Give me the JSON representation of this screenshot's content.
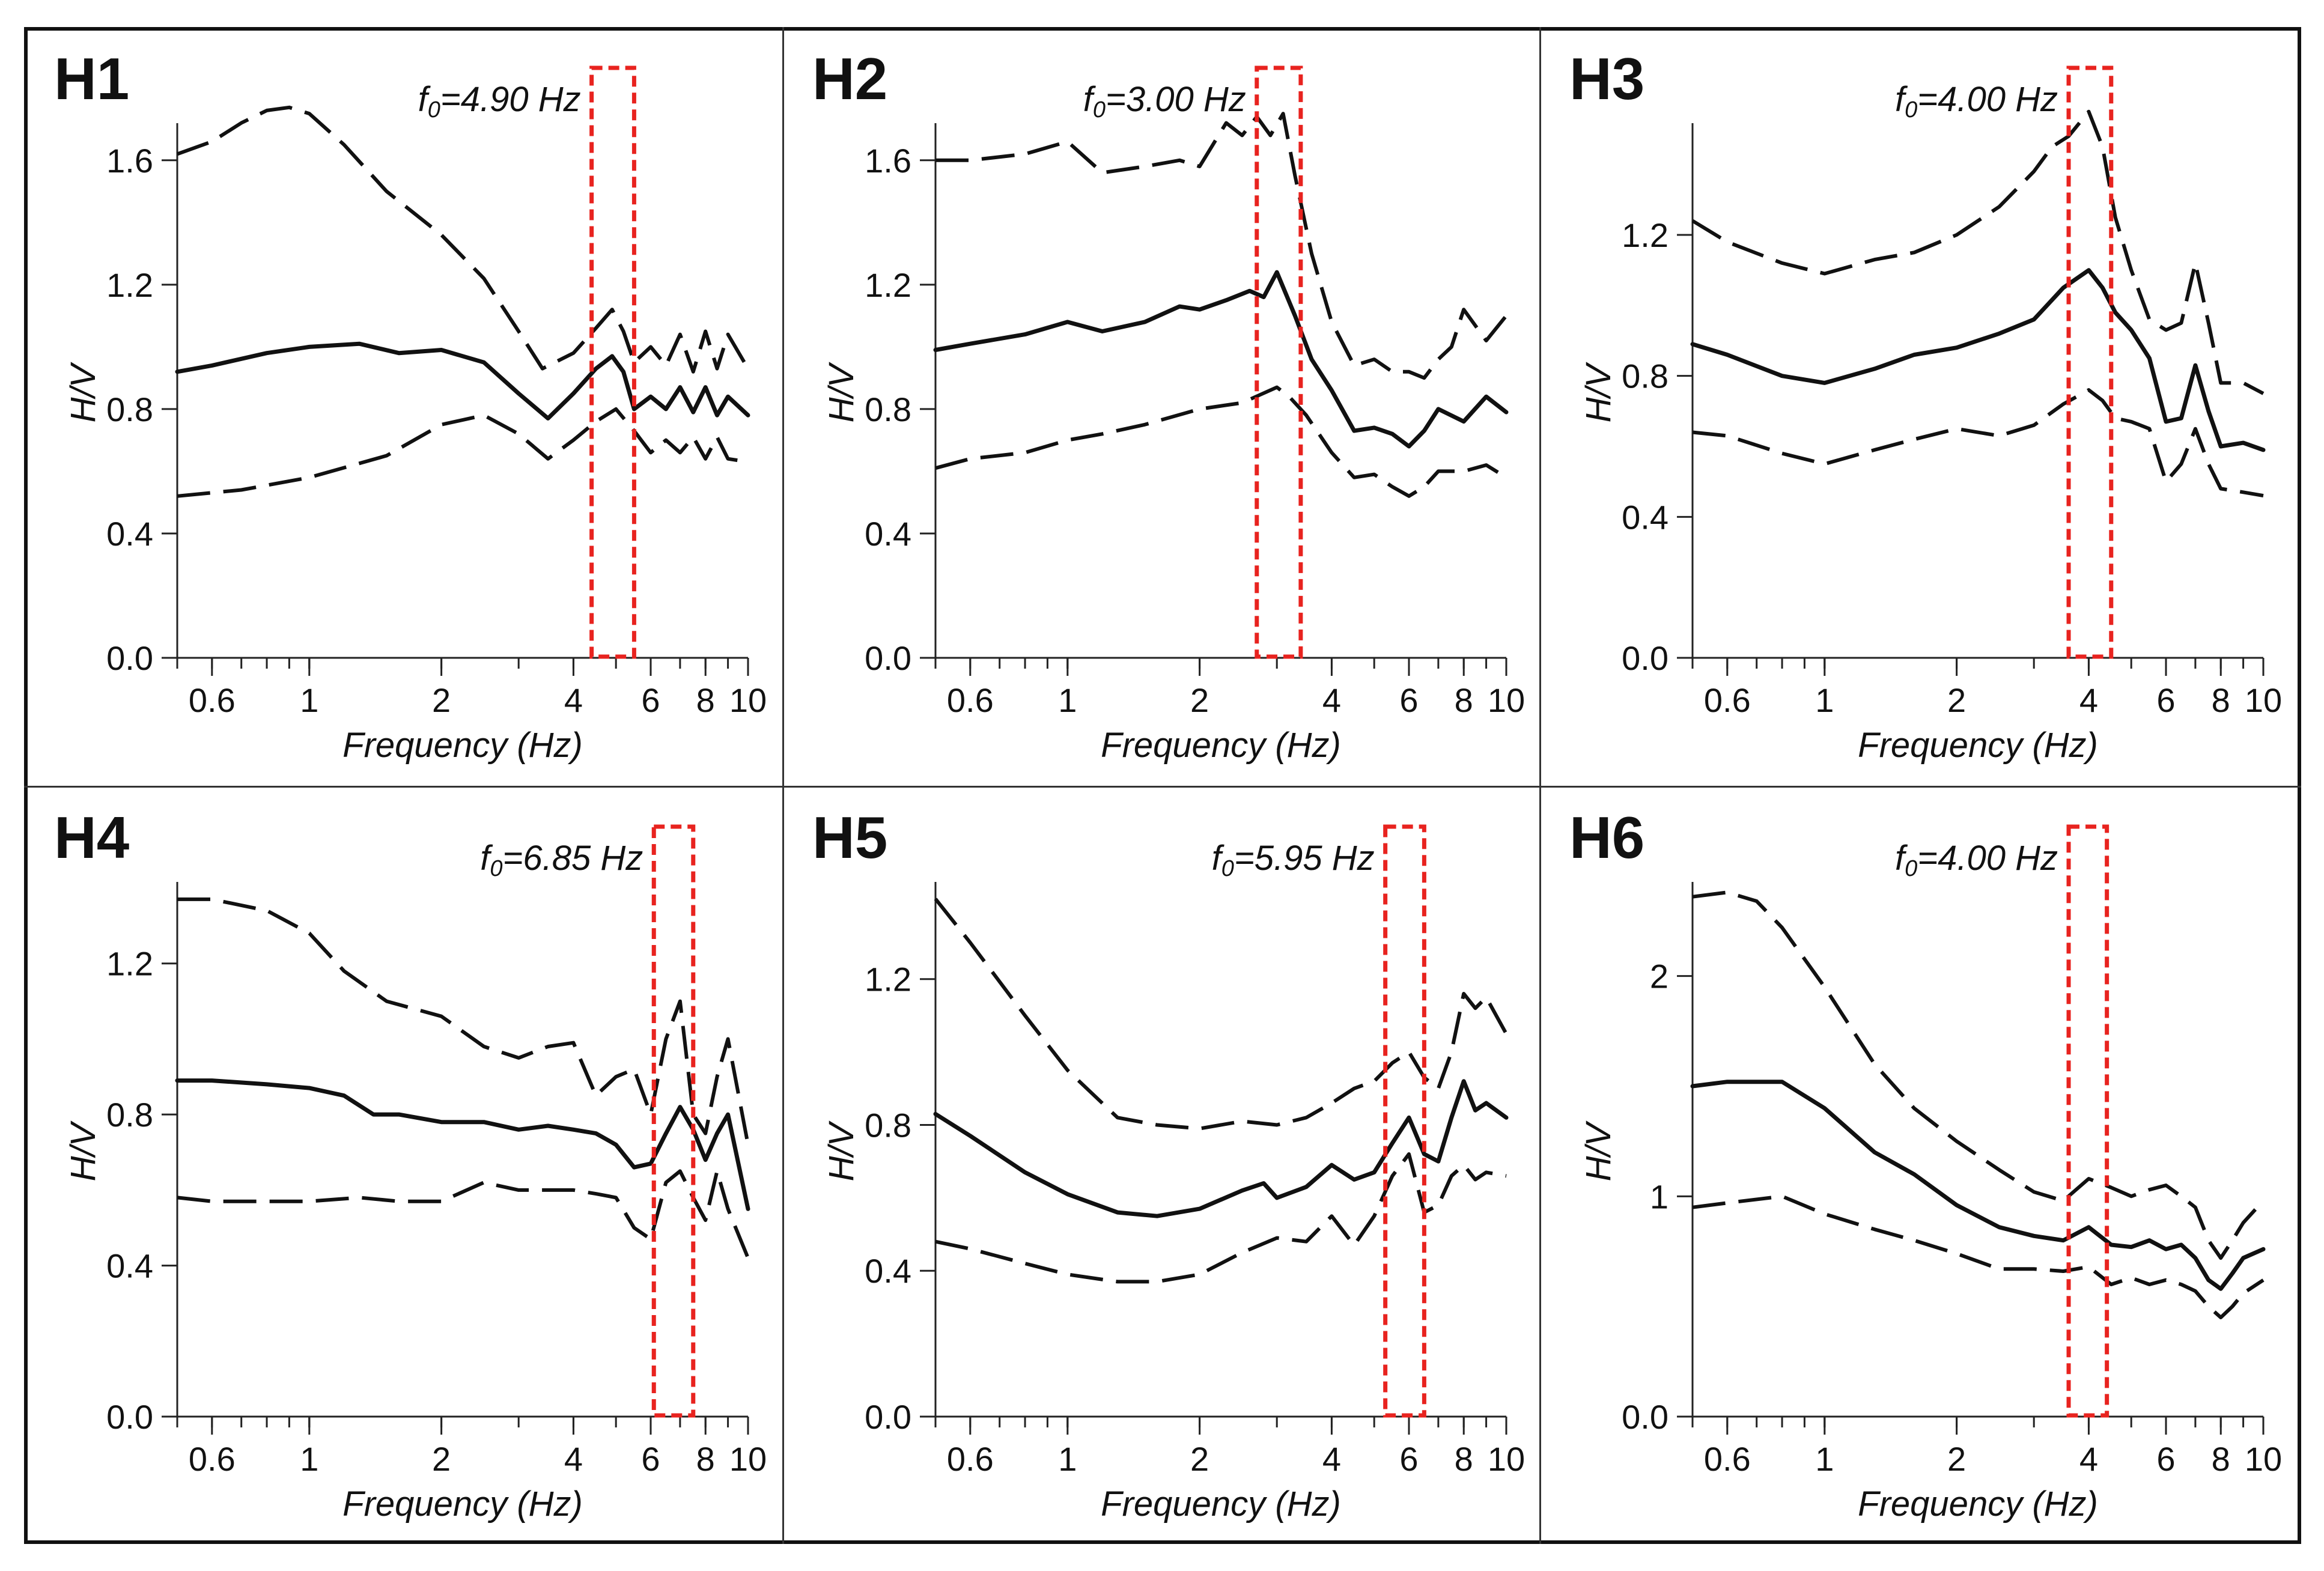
{
  "chart_data": [
    {
      "type": "line",
      "panel_label": "H1",
      "f0_label": "f0=4.90 Hz",
      "f0": 4.9,
      "x_ticks": [
        "0.6",
        "1",
        "2",
        "4",
        "6",
        "8",
        "10"
      ],
      "y_ticks": [
        "0.0",
        "0.4",
        "0.8",
        "1.2",
        "1.6"
      ],
      "xlabel": "Frequency (Hz)",
      "ylabel": "H/V",
      "xscale": "log",
      "xlim": [
        0.5,
        10
      ],
      "ylim": [
        0,
        1.7
      ],
      "peak_band": [
        4.4,
        5.5
      ],
      "series": [
        {
          "style": "solid",
          "x": [
            0.5,
            0.6,
            0.8,
            1,
            1.3,
            1.6,
            2,
            2.5,
            3,
            3.5,
            4,
            4.5,
            4.9,
            5.2,
            5.5,
            6,
            6.5,
            7,
            7.5,
            8,
            8.5,
            9,
            10
          ],
          "y": [
            0.92,
            0.94,
            0.98,
            1.0,
            1.01,
            0.98,
            0.99,
            0.95,
            0.85,
            0.77,
            0.85,
            0.93,
            0.97,
            0.92,
            0.8,
            0.84,
            0.8,
            0.87,
            0.79,
            0.87,
            0.78,
            0.84,
            0.78
          ]
        },
        {
          "style": "dashed",
          "x": [
            0.5,
            0.6,
            0.7,
            0.8,
            0.9,
            1,
            1.2,
            1.5,
            2,
            2.5,
            3,
            3.4,
            4,
            4.5,
            4.9,
            5.2,
            5.5,
            6,
            6.5,
            7,
            7.5,
            8,
            8.5,
            9,
            10
          ],
          "y": [
            1.62,
            1.66,
            1.72,
            1.76,
            1.77,
            1.75,
            1.65,
            1.5,
            1.36,
            1.22,
            1.05,
            0.93,
            0.98,
            1.06,
            1.12,
            1.05,
            0.95,
            1.0,
            0.94,
            1.04,
            0.92,
            1.05,
            0.93,
            1.04,
            0.93
          ]
        },
        {
          "style": "dashed",
          "x": [
            0.5,
            0.7,
            1,
            1.5,
            2,
            2.5,
            3,
            3.5,
            4,
            4.5,
            5,
            5.5,
            6,
            6.5,
            7,
            7.5,
            8,
            8.5,
            9,
            10
          ],
          "y": [
            0.52,
            0.54,
            0.58,
            0.65,
            0.75,
            0.78,
            0.72,
            0.64,
            0.7,
            0.76,
            0.8,
            0.73,
            0.66,
            0.7,
            0.66,
            0.71,
            0.64,
            0.71,
            0.64,
            0.63
          ]
        }
      ]
    },
    {
      "type": "line",
      "panel_label": "H2",
      "f0_label": "f0=3.00 Hz",
      "f0": 3.0,
      "x_ticks": [
        "0.6",
        "1",
        "2",
        "4",
        "6",
        "8",
        "10"
      ],
      "y_ticks": [
        "0.0",
        "0.4",
        "0.8",
        "1.2",
        "1.6"
      ],
      "xlabel": "Frequency (Hz)",
      "ylabel": "H/V",
      "xscale": "log",
      "xlim": [
        0.5,
        10
      ],
      "ylim": [
        0,
        1.7
      ],
      "peak_band": [
        2.7,
        3.4
      ],
      "series": [
        {
          "style": "solid",
          "x": [
            0.5,
            0.6,
            0.8,
            1,
            1.2,
            1.5,
            1.8,
            2,
            2.3,
            2.6,
            2.8,
            3,
            3.3,
            3.6,
            4,
            4.5,
            5,
            5.5,
            6,
            6.5,
            7,
            8,
            9,
            10
          ],
          "y": [
            0.99,
            1.01,
            1.04,
            1.08,
            1.05,
            1.08,
            1.13,
            1.12,
            1.15,
            1.18,
            1.16,
            1.24,
            1.1,
            0.96,
            0.86,
            0.73,
            0.74,
            0.72,
            0.68,
            0.73,
            0.8,
            0.76,
            0.84,
            0.79
          ]
        },
        {
          "style": "dashed",
          "x": [
            0.5,
            0.6,
            0.8,
            1,
            1.2,
            1.5,
            1.8,
            2,
            2.3,
            2.5,
            2.7,
            2.9,
            3.1,
            3.3,
            3.6,
            4,
            4.5,
            5,
            5.5,
            6,
            6.5,
            7,
            7.5,
            8,
            9,
            10
          ],
          "y": [
            1.6,
            1.6,
            1.62,
            1.66,
            1.56,
            1.58,
            1.6,
            1.58,
            1.72,
            1.68,
            1.74,
            1.68,
            1.75,
            1.55,
            1.3,
            1.08,
            0.94,
            0.96,
            0.92,
            0.92,
            0.9,
            0.96,
            1.0,
            1.12,
            1.02,
            1.1
          ]
        },
        {
          "style": "dashed",
          "x": [
            0.5,
            0.6,
            0.8,
            1,
            1.2,
            1.5,
            2,
            2.5,
            3,
            3.2,
            3.5,
            4,
            4.5,
            5,
            5.5,
            6,
            6.5,
            7,
            8,
            9,
            10
          ],
          "y": [
            0.61,
            0.64,
            0.66,
            0.7,
            0.72,
            0.75,
            0.8,
            0.82,
            0.87,
            0.84,
            0.78,
            0.66,
            0.58,
            0.59,
            0.55,
            0.52,
            0.55,
            0.6,
            0.6,
            0.62,
            0.58
          ]
        }
      ]
    },
    {
      "type": "line",
      "panel_label": "H3",
      "f0_label": "f0=4.00 Hz",
      "f0": 4.0,
      "x_ticks": [
        "0.6",
        "1",
        "2",
        "4",
        "6",
        "8",
        "10"
      ],
      "y_ticks": [
        "0.0",
        "0.4",
        "0.8",
        "1.2"
      ],
      "xlabel": "Frequency (Hz)",
      "ylabel": "H/V",
      "xscale": "log",
      "xlim": [
        0.5,
        10
      ],
      "ylim": [
        0,
        1.5
      ],
      "peak_band": [
        3.6,
        4.5
      ],
      "series": [
        {
          "style": "solid",
          "x": [
            0.5,
            0.6,
            0.8,
            1,
            1.3,
            1.6,
            2,
            2.5,
            3,
            3.5,
            4,
            4.3,
            4.6,
            5,
            5.5,
            6,
            6.5,
            7,
            7.5,
            8,
            9,
            10
          ],
          "y": [
            0.89,
            0.86,
            0.8,
            0.78,
            0.82,
            0.86,
            0.88,
            0.92,
            0.96,
            1.05,
            1.1,
            1.05,
            0.98,
            0.93,
            0.85,
            0.67,
            0.68,
            0.83,
            0.7,
            0.6,
            0.61,
            0.59
          ]
        },
        {
          "style": "dashed",
          "x": [
            0.5,
            0.6,
            0.8,
            1,
            1.3,
            1.6,
            2,
            2.5,
            3,
            3.3,
            3.6,
            4,
            4.3,
            4.6,
            5,
            5.5,
            6,
            6.5,
            7,
            7.5,
            8,
            9,
            10
          ],
          "y": [
            1.24,
            1.18,
            1.12,
            1.09,
            1.13,
            1.15,
            1.2,
            1.28,
            1.38,
            1.45,
            1.48,
            1.55,
            1.45,
            1.25,
            1.1,
            0.96,
            0.93,
            0.95,
            1.12,
            0.95,
            0.78,
            0.78,
            0.75
          ]
        },
        {
          "style": "dashed",
          "x": [
            0.5,
            0.6,
            0.8,
            1,
            1.3,
            1.6,
            2,
            2.5,
            3,
            3.5,
            4,
            4.3,
            4.6,
            5,
            5.5,
            6,
            6.5,
            7,
            7.5,
            8,
            9,
            10
          ],
          "y": [
            0.64,
            0.63,
            0.58,
            0.55,
            0.59,
            0.62,
            0.65,
            0.63,
            0.66,
            0.72,
            0.76,
            0.73,
            0.68,
            0.67,
            0.65,
            0.5,
            0.55,
            0.65,
            0.55,
            0.48,
            0.47,
            0.46
          ]
        }
      ]
    },
    {
      "type": "line",
      "panel_label": "H4",
      "f0_label": "f0=6.85 Hz",
      "f0": 6.85,
      "x_ticks": [
        "0.6",
        "1",
        "2",
        "4",
        "6",
        "8",
        "10"
      ],
      "y_ticks": [
        "0.0",
        "0.4",
        "0.8",
        "1.2"
      ],
      "xlabel": "Frequency (Hz)",
      "ylabel": "H/V",
      "xscale": "log",
      "xlim": [
        0.5,
        10
      ],
      "ylim": [
        0,
        1.4
      ],
      "peak_band": [
        6.1,
        7.5
      ],
      "series": [
        {
          "style": "solid",
          "x": [
            0.5,
            0.6,
            0.8,
            1,
            1.2,
            1.4,
            1.6,
            2,
            2.5,
            3,
            3.5,
            4,
            4.5,
            5,
            5.5,
            6,
            6.5,
            7,
            7.5,
            8,
            8.5,
            9,
            10
          ],
          "y": [
            0.89,
            0.89,
            0.88,
            0.87,
            0.85,
            0.8,
            0.8,
            0.78,
            0.78,
            0.76,
            0.77,
            0.76,
            0.75,
            0.72,
            0.66,
            0.67,
            0.75,
            0.82,
            0.76,
            0.68,
            0.75,
            0.8,
            0.55
          ]
        },
        {
          "style": "dashed",
          "x": [
            0.5,
            0.6,
            0.8,
            1,
            1.2,
            1.5,
            2,
            2.5,
            3,
            3.5,
            4,
            4.5,
            5,
            5.5,
            6,
            6.5,
            7,
            7.5,
            8,
            8.5,
            9,
            10
          ],
          "y": [
            1.37,
            1.37,
            1.34,
            1.28,
            1.18,
            1.1,
            1.06,
            0.98,
            0.95,
            0.98,
            0.99,
            0.85,
            0.9,
            0.92,
            0.8,
            1.0,
            1.1,
            0.8,
            0.75,
            0.9,
            1.0,
            0.72
          ]
        },
        {
          "style": "dashed",
          "x": [
            0.5,
            0.6,
            0.8,
            1,
            1.3,
            1.6,
            2,
            2.5,
            3,
            3.5,
            4,
            4.5,
            5,
            5.5,
            6,
            6.5,
            7,
            7.5,
            8,
            8.5,
            9,
            10
          ],
          "y": [
            0.58,
            0.57,
            0.57,
            0.57,
            0.58,
            0.57,
            0.57,
            0.62,
            0.6,
            0.6,
            0.6,
            0.59,
            0.58,
            0.5,
            0.47,
            0.62,
            0.65,
            0.58,
            0.52,
            0.65,
            0.55,
            0.42
          ]
        }
      ]
    },
    {
      "type": "line",
      "panel_label": "H5",
      "f0_label": "f0=5.95 Hz",
      "f0": 5.95,
      "x_ticks": [
        "0.6",
        "1",
        "2",
        "4",
        "6",
        "8",
        "10"
      ],
      "y_ticks": [
        "0.0",
        "0.4",
        "0.8",
        "1.2"
      ],
      "xlabel": "Frequency (Hz)",
      "ylabel": "H/V",
      "xscale": "log",
      "xlim": [
        0.5,
        10
      ],
      "ylim": [
        0,
        1.45
      ],
      "peak_band": [
        5.3,
        6.5
      ],
      "series": [
        {
          "style": "solid",
          "x": [
            0.5,
            0.6,
            0.8,
            1,
            1.3,
            1.6,
            2,
            2.5,
            2.8,
            3,
            3.5,
            4,
            4.5,
            5,
            5.5,
            6,
            6.5,
            7,
            7.5,
            8,
            8.5,
            9,
            10
          ],
          "y": [
            0.83,
            0.77,
            0.67,
            0.61,
            0.56,
            0.55,
            0.57,
            0.62,
            0.64,
            0.6,
            0.63,
            0.69,
            0.65,
            0.67,
            0.75,
            0.82,
            0.72,
            0.7,
            0.82,
            0.92,
            0.84,
            0.86,
            0.82
          ]
        },
        {
          "style": "dashed",
          "x": [
            0.5,
            0.6,
            0.8,
            1,
            1.3,
            1.6,
            2,
            2.5,
            3,
            3.5,
            4,
            4.5,
            5,
            5.5,
            6,
            6.5,
            7,
            7.5,
            8,
            8.5,
            9,
            10
          ],
          "y": [
            1.42,
            1.3,
            1.1,
            0.95,
            0.82,
            0.8,
            0.79,
            0.81,
            0.8,
            0.82,
            0.86,
            0.9,
            0.92,
            0.97,
            1.0,
            0.93,
            0.9,
            1.0,
            1.16,
            1.12,
            1.15,
            1.05
          ]
        },
        {
          "style": "dashed",
          "x": [
            0.5,
            0.6,
            0.8,
            1,
            1.3,
            1.6,
            2,
            2.5,
            3,
            3.5,
            4,
            4.5,
            5,
            5.5,
            6,
            6.5,
            7,
            7.5,
            8,
            8.5,
            9,
            10
          ],
          "y": [
            0.48,
            0.46,
            0.42,
            0.39,
            0.37,
            0.37,
            0.39,
            0.45,
            0.49,
            0.48,
            0.55,
            0.47,
            0.55,
            0.66,
            0.72,
            0.56,
            0.58,
            0.66,
            0.69,
            0.65,
            0.67,
            0.66
          ]
        }
      ]
    },
    {
      "type": "line",
      "panel_label": "H6",
      "f0_label": "f0=4.00 Hz",
      "f0": 4.0,
      "x_ticks": [
        "0.6",
        "1",
        "2",
        "4",
        "6",
        "8",
        "10"
      ],
      "y_ticks": [
        "0.0",
        "1",
        "2"
      ],
      "xlabel": "Frequency (Hz)",
      "ylabel": "H/V",
      "xscale": "log",
      "xlim": [
        0.5,
        10
      ],
      "ylim": [
        0,
        2.4
      ],
      "peak_band": [
        3.6,
        4.4
      ],
      "series": [
        {
          "style": "solid",
          "x": [
            0.5,
            0.6,
            0.8,
            1,
            1.3,
            1.6,
            2,
            2.5,
            3,
            3.5,
            4,
            4.5,
            5,
            5.5,
            6,
            6.5,
            7,
            7.5,
            8,
            8.5,
            9,
            10
          ],
          "y": [
            1.5,
            1.52,
            1.52,
            1.4,
            1.2,
            1.1,
            0.96,
            0.86,
            0.82,
            0.8,
            0.86,
            0.78,
            0.77,
            0.8,
            0.76,
            0.78,
            0.72,
            0.62,
            0.58,
            0.65,
            0.72,
            0.76
          ]
        },
        {
          "style": "dashed",
          "x": [
            0.5,
            0.6,
            0.7,
            0.8,
            1,
            1.3,
            1.6,
            2,
            2.5,
            3,
            3.5,
            4,
            4.5,
            5,
            5.5,
            6,
            6.5,
            7,
            7.5,
            8,
            8.5,
            9,
            10
          ],
          "y": [
            2.36,
            2.38,
            2.34,
            2.22,
            1.95,
            1.6,
            1.4,
            1.25,
            1.12,
            1.02,
            0.98,
            1.08,
            1.04,
            1.0,
            1.03,
            1.05,
            1.0,
            0.95,
            0.8,
            0.72,
            0.8,
            0.88,
            0.98
          ]
        },
        {
          "style": "dashed",
          "x": [
            0.5,
            0.6,
            0.8,
            1,
            1.3,
            1.6,
            2,
            2.5,
            3,
            3.5,
            4,
            4.5,
            5,
            5.5,
            6,
            6.5,
            7,
            7.5,
            8,
            8.5,
            9,
            10
          ],
          "y": [
            0.95,
            0.97,
            1.0,
            0.92,
            0.85,
            0.8,
            0.74,
            0.67,
            0.67,
            0.66,
            0.68,
            0.6,
            0.63,
            0.6,
            0.62,
            0.6,
            0.57,
            0.5,
            0.45,
            0.5,
            0.56,
            0.62
          ]
        }
      ]
    }
  ]
}
